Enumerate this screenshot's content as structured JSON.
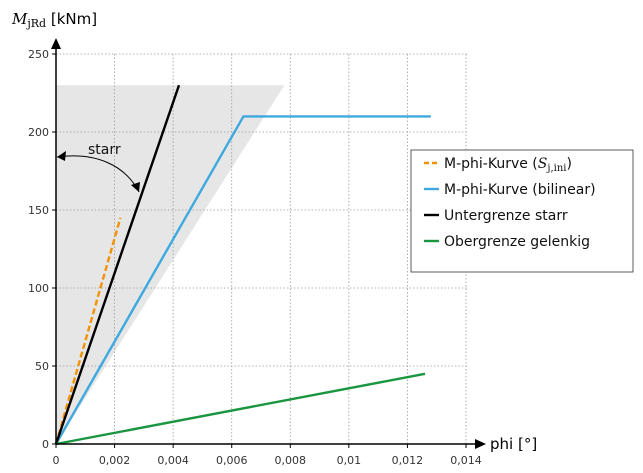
{
  "chart_data": {
    "type": "line",
    "xlabel": "phi [°]",
    "ylabel": {
      "symbol": "M",
      "subscript": "jRd",
      "unit": " [kNm]"
    },
    "xlim": [
      0,
      0.014
    ],
    "ylim": [
      0,
      250
    ],
    "x_ticks": [
      0,
      0.002,
      0.004,
      0.006,
      0.008,
      0.01,
      0.012,
      0.014
    ],
    "x_tick_labels": [
      "0",
      "0,002",
      "0,004",
      "0,006",
      "0,008",
      "0,01",
      "0,012",
      "0,014"
    ],
    "y_ticks": [
      0,
      50,
      100,
      150,
      200,
      250
    ],
    "y_tick_labels": [
      "0",
      "50",
      "100",
      "150",
      "200",
      "250"
    ],
    "grid": true,
    "legend_position": "right",
    "series": [
      {
        "key": "sjini",
        "name": "M-phi-Kurve (S_j,ini)",
        "legend": {
          "prefix": "M-phi-Kurve (",
          "symbol": "S",
          "subscript": "j,ini",
          "suffix": ")"
        },
        "color": "#F39200",
        "dashed": true,
        "points": [
          [
            0,
            0
          ],
          [
            0.0022,
            145
          ]
        ]
      },
      {
        "key": "bilinear",
        "name": "M-phi-Kurve (bilinear)",
        "legend": {
          "prefix": "M-phi-Kurve (bilinear)",
          "symbol": "",
          "subscript": "",
          "suffix": ""
        },
        "color": "#3FA9DF",
        "dashed": false,
        "points": [
          [
            0,
            0
          ],
          [
            0.0064,
            210
          ],
          [
            0.0128,
            210
          ]
        ]
      },
      {
        "key": "starr",
        "name": "Untergrenze starr",
        "legend": {
          "prefix": "Untergrenze starr",
          "symbol": "",
          "subscript": "",
          "suffix": ""
        },
        "color": "#000000",
        "dashed": false,
        "points": [
          [
            0,
            0
          ],
          [
            0.0042,
            230
          ]
        ]
      },
      {
        "key": "gelenkig",
        "name": "Obergrenze gelenkig",
        "legend": {
          "prefix": "Obergrenze gelenkig",
          "symbol": "",
          "subscript": "",
          "suffix": ""
        },
        "color": "#1A9641",
        "dashed": false,
        "points": [
          [
            0,
            0
          ],
          [
            0.0126,
            45
          ]
        ]
      }
    ],
    "region": {
      "name": "rigid-region",
      "color": "#E6E6E6",
      "polygon": [
        [
          0,
          0
        ],
        [
          0,
          230
        ],
        [
          0.0078,
          230
        ]
      ]
    },
    "annotation": {
      "text": "starr"
    }
  }
}
